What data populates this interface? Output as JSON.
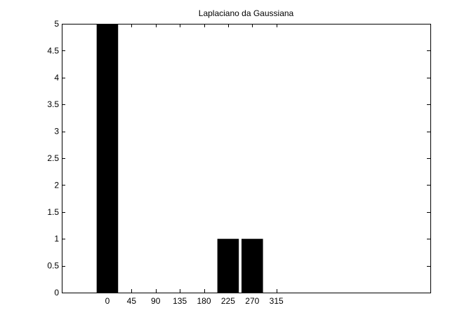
{
  "chart_data": {
    "type": "bar",
    "title": "Laplaciano da Gaussiana",
    "xlabel": "",
    "ylabel": "",
    "categories": [
      "0",
      "45",
      "90",
      "135",
      "180",
      "225",
      "270",
      "315"
    ],
    "x": [
      0,
      45,
      90,
      135,
      180,
      225,
      270,
      315
    ],
    "values": [
      5,
      0,
      0,
      0,
      0,
      1,
      1,
      0
    ],
    "xlim": [
      -85,
      602
    ],
    "ylim": [
      0,
      5
    ],
    "yticks": [
      0,
      0.5,
      1,
      1.5,
      2,
      2.5,
      3,
      3.5,
      4,
      4.5,
      5
    ],
    "ytick_labels": [
      "0",
      "0.5",
      "1",
      "1.5",
      "2",
      "2.5",
      "3",
      "3.5",
      "4",
      "4.5",
      "5"
    ],
    "bar_color": "#000000",
    "grid": false,
    "legend": "none"
  }
}
